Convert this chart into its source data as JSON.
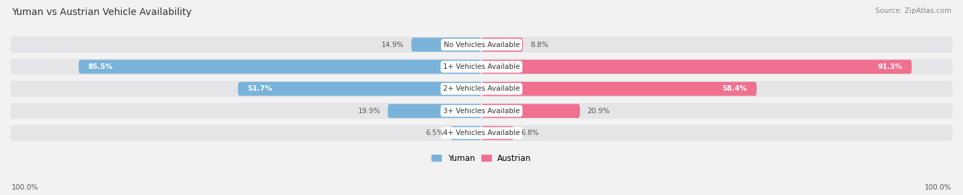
{
  "title": "Yuman vs Austrian Vehicle Availability",
  "source": "Source: ZipAtlas.com",
  "categories": [
    "No Vehicles Available",
    "1+ Vehicles Available",
    "2+ Vehicles Available",
    "3+ Vehicles Available",
    "4+ Vehicles Available"
  ],
  "yuman_values": [
    14.9,
    85.5,
    51.7,
    19.9,
    6.5
  ],
  "austrian_values": [
    8.8,
    91.3,
    58.4,
    20.9,
    6.8
  ],
  "yuman_color": "#7ab3d9",
  "austrian_color": "#f07090",
  "yuman_color_pale": "#b8d4ea",
  "austrian_color_pale": "#f8b8c8",
  "bg_color": "#f2f2f2",
  "bar_bg_color": "#e5e5e8",
  "title_color": "#333333",
  "source_color": "#888888",
  "label_dark": "#555555",
  "legend_yuman": "Yuman",
  "legend_austrian": "Austrian",
  "left_label": "100.0%",
  "right_label": "100.0%"
}
